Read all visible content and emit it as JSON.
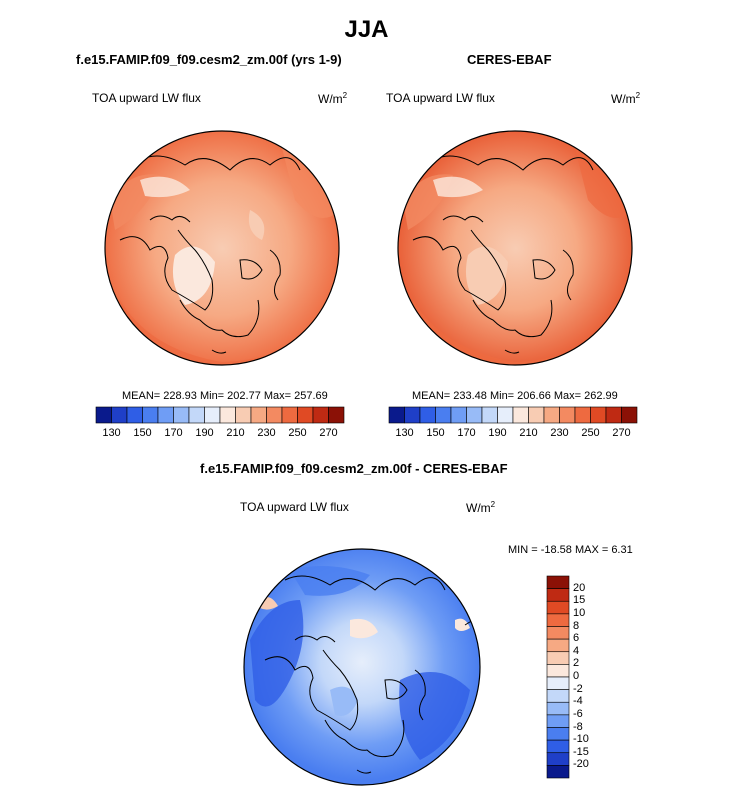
{
  "main_title": "JJA",
  "panels": [
    {
      "title": "f.e15.FAMIP.f09_f09.cesm2_zm.00f (yrs 1-9)",
      "variable": "TOA upward LW flux",
      "units": "W/m",
      "units_exp": "2",
      "stats_text": "MEAN= 228.93  Min= 202.77  Max= 257.69",
      "mean": 228.93,
      "min": 202.77,
      "max": 257.69
    },
    {
      "title": "CERES-EBAF",
      "variable": "TOA upward LW flux",
      "units": "W/m",
      "units_exp": "2",
      "stats_text": "MEAN= 233.48  Min= 206.66  Max= 262.99",
      "mean": 233.48,
      "min": 206.66,
      "max": 262.99
    },
    {
      "title": "f.e15.FAMIP.f09_f09.cesm2_zm.00f - CERES-EBAF",
      "variable": "TOA upward LW flux",
      "units": "W/m",
      "units_exp": "2",
      "stats_text": "MIN = -18.58 MAX =   6.31",
      "min": -18.58,
      "max": 6.31
    }
  ],
  "chart_data": [
    {
      "type": "heatmap",
      "title": "f.e15.FAMIP.f09_f09.cesm2_zm.00f (yrs 1-9)",
      "projection": "polar-stereographic-north",
      "colorbar": {
        "orientation": "horizontal",
        "levels": [
          130,
          140,
          150,
          160,
          170,
          180,
          190,
          200,
          210,
          220,
          230,
          240,
          250,
          260,
          270
        ],
        "tick_labels": [
          "130",
          "150",
          "170",
          "190",
          "210",
          "230",
          "250",
          "270"
        ],
        "colors": [
          "#0a1a8c",
          "#1f3fc8",
          "#2f5ee6",
          "#4a7ef0",
          "#6f9df5",
          "#98bbf7",
          "#c3d8f9",
          "#e6eefb",
          "#fbe8dd",
          "#f8ccb3",
          "#f6a983",
          "#f38a61",
          "#ee6a40",
          "#e04a24",
          "#bf2a13",
          "#8b1106"
        ]
      }
    },
    {
      "type": "heatmap",
      "title": "CERES-EBAF",
      "projection": "polar-stereographic-north",
      "colorbar": {
        "orientation": "horizontal",
        "levels": [
          130,
          140,
          150,
          160,
          170,
          180,
          190,
          200,
          210,
          220,
          230,
          240,
          250,
          260,
          270
        ],
        "tick_labels": [
          "130",
          "150",
          "170",
          "190",
          "210",
          "230",
          "250",
          "270"
        ],
        "colors": [
          "#0a1a8c",
          "#1f3fc8",
          "#2f5ee6",
          "#4a7ef0",
          "#6f9df5",
          "#98bbf7",
          "#c3d8f9",
          "#e6eefb",
          "#fbe8dd",
          "#f8ccb3",
          "#f6a983",
          "#f38a61",
          "#ee6a40",
          "#e04a24",
          "#bf2a13",
          "#8b1106"
        ]
      }
    },
    {
      "type": "heatmap",
      "title": "f.e15.FAMIP.f09_f09.cesm2_zm.00f - CERES-EBAF",
      "projection": "polar-stereographic-north",
      "colorbar": {
        "orientation": "vertical",
        "levels": [
          -20,
          -15,
          -10,
          -8,
          -6,
          -4,
          -2,
          0,
          2,
          4,
          6,
          8,
          10,
          15,
          20
        ],
        "tick_labels": [
          "20",
          "15",
          "10",
          "8",
          "6",
          "4",
          "2",
          "0",
          "-2",
          "-4",
          "-6",
          "-8",
          "-10",
          "-15",
          "-20"
        ],
        "colors": [
          "#0a1a8c",
          "#1f3fc8",
          "#2f5ee6",
          "#4a7ef0",
          "#6f9df5",
          "#98bbf7",
          "#c3d8f9",
          "#e6eefb",
          "#fbe8dd",
          "#f8ccb3",
          "#f6a983",
          "#f38a61",
          "#ee6a40",
          "#e04a24",
          "#bf2a13",
          "#8b1106"
        ]
      }
    }
  ]
}
